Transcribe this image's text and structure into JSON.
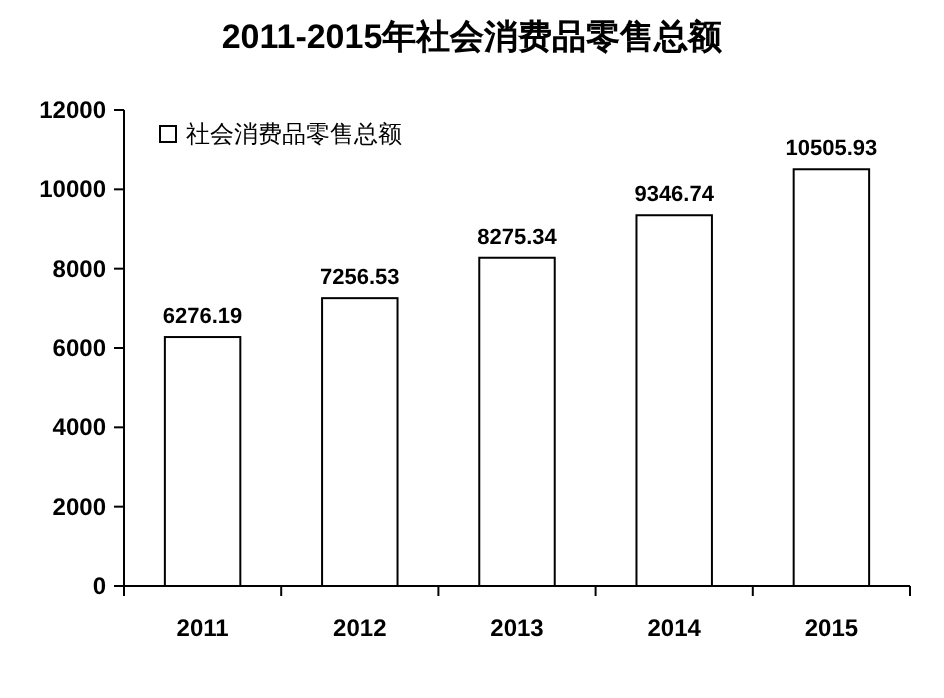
{
  "chart_data": {
    "type": "bar",
    "title": "2011-2015年社会消费品零售总额",
    "categories": [
      "2011",
      "2012",
      "2013",
      "2014",
      "2015"
    ],
    "series": [
      {
        "name": "社会消费品零售总额",
        "color": "#ffffff",
        "values": [
          6276.19,
          7256.53,
          8275.34,
          9346.74,
          10505.93
        ]
      }
    ],
    "ylim": [
      0,
      12000
    ],
    "yticks": [
      0,
      2000,
      4000,
      6000,
      8000,
      10000,
      12000
    ],
    "data_labels": true,
    "grid": false,
    "legend": "top left"
  }
}
